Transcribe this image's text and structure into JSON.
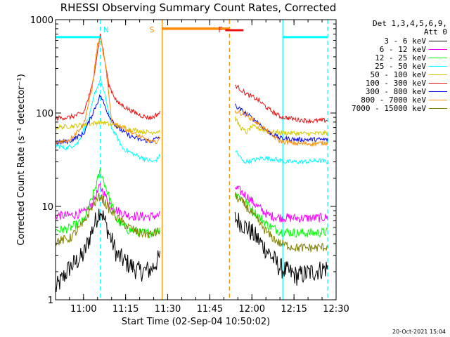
{
  "title": "RHESSI Observing Summary Count Rates, Corrected",
  "footer": "20-Oct-2021 15:04",
  "legend": {
    "header": [
      "Det 1,3,4,5,6,9,",
      "Att 0"
    ],
    "entries": [
      {
        "label": "3 - 6 keV",
        "color": "#000000"
      },
      {
        "label": "6 - 12 keV",
        "color": "#ff00ff"
      },
      {
        "label": "12 - 25 keV",
        "color": "#00ff00"
      },
      {
        "label": "25 - 50 keV",
        "color": "#00ffff"
      },
      {
        "label": "50 - 100 keV",
        "color": "#d4c800"
      },
      {
        "label": "100 - 300 keV",
        "color": "#ee1111"
      },
      {
        "label": "300 - 800 keV",
        "color": "#0000ff"
      },
      {
        "label": "800 - 7000 keV",
        "color": "#ff8c00"
      },
      {
        "label": "7000 - 15000 keV",
        "color": "#808000"
      }
    ]
  },
  "chart_data": {
    "type": "line",
    "title": "RHESSI Observing Summary Count Rates, Corrected",
    "xlabel": "Start Time (02-Sep-04 10:50:02)",
    "ylabel": "Corrected Count Rate (s⁻¹ detector⁻¹)",
    "y_scale": "log",
    "xlim": [
      "10:50:02",
      "12:30:00"
    ],
    "ylim": [
      1,
      1000
    ],
    "x_ticks": [
      "11:00",
      "11:15",
      "11:30",
      "11:45",
      "12:00",
      "12:15",
      "12:30"
    ],
    "y_ticks": [
      "1",
      "10",
      "100",
      "1000"
    ],
    "flags": [
      {
        "label": "N",
        "color": "#00ffff",
        "start": "11:06",
        "end": "11:06"
      },
      {
        "label": "S",
        "color": "#ff8c00",
        "start": "11:27",
        "end": "11:50"
      },
      {
        "label": "F",
        "color": "#ee1111",
        "start": "11:53",
        "end": "11:57"
      }
    ],
    "night_bars": [
      {
        "start": "10:50",
        "end": "11:06",
        "level": 650,
        "color": "#00ffff"
      },
      {
        "start": "12:11",
        "end": "12:27",
        "level": 650,
        "color": "#00ffff"
      }
    ],
    "saa_bar": {
      "start": "11:28",
      "end": "11:52",
      "level": 800,
      "color": "#ff8c00"
    },
    "vertical_lines": [
      {
        "time": "11:06",
        "color": "#00ffff",
        "style": "dashed"
      },
      {
        "time": "11:28",
        "color": "#ff8c00",
        "style": "solid"
      },
      {
        "time": "11:52",
        "color": "#ff8c00",
        "style": "dashed"
      },
      {
        "time": "12:11",
        "color": "#00ffff",
        "style": "solid"
      },
      {
        "time": "12:27",
        "color": "#00ffff",
        "style": "dashed"
      }
    ],
    "gap": [
      "11:28",
      "11:54"
    ],
    "series": [
      {
        "name": "3 - 6 keV",
        "color": "#000000",
        "x": [
          "10:50",
          "10:55",
          "11:00",
          "11:03",
          "11:06",
          "11:09",
          "11:12",
          "11:16",
          "11:20",
          "11:24",
          "11:27",
          "11:54",
          "11:58",
          "12:02",
          "12:06",
          "12:10",
          "12:16",
          "12:22",
          "12:27"
        ],
        "y": [
          1.3,
          2.2,
          3.0,
          5.5,
          9.5,
          5.2,
          3.0,
          2.4,
          2.0,
          2.1,
          2.8,
          7.5,
          6.0,
          4.5,
          3.2,
          2.2,
          1.8,
          2.0,
          2.2
        ]
      },
      {
        "name": "6 - 12 keV",
        "color": "#ff00ff",
        "x": [
          "10:50",
          "10:55",
          "11:00",
          "11:03",
          "11:06",
          "11:09",
          "11:12",
          "11:16",
          "11:20",
          "11:24",
          "11:27",
          "11:54",
          "11:58",
          "12:02",
          "12:06",
          "12:10",
          "12:16",
          "12:22",
          "12:27"
        ],
        "y": [
          8.0,
          8.0,
          8.5,
          10.5,
          16.5,
          11.0,
          9.0,
          8.0,
          7.8,
          7.8,
          8.0,
          16.0,
          13.0,
          10.0,
          8.0,
          7.6,
          7.5,
          7.5,
          7.6
        ]
      },
      {
        "name": "12 - 25 keV",
        "color": "#00ff00",
        "x": [
          "10:50",
          "10:55",
          "11:00",
          "11:03",
          "11:06",
          "11:09",
          "11:12",
          "11:16",
          "11:20",
          "11:24",
          "11:27",
          "11:54",
          "11:58",
          "12:02",
          "12:06",
          "12:10",
          "12:16",
          "12:22",
          "12:27"
        ],
        "y": [
          5.5,
          5.8,
          7.0,
          12.0,
          24.0,
          13.0,
          7.0,
          5.6,
          5.2,
          5.2,
          5.6,
          14.0,
          11.0,
          8.0,
          6.2,
          5.4,
          5.2,
          5.2,
          5.3
        ]
      },
      {
        "name": "25 - 50 keV",
        "color": "#00ffff",
        "x": [
          "10:50",
          "10:54",
          "10:58",
          "11:02",
          "11:04",
          "11:06",
          "11:08",
          "11:10",
          "11:14",
          "11:18",
          "11:22",
          "11:25",
          "11:27",
          "11:54",
          "11:57",
          "12:00",
          "12:04",
          "12:08",
          "12:12",
          "12:18",
          "12:24",
          "12:27"
        ],
        "y": [
          45,
          42,
          48,
          90,
          160,
          230,
          140,
          70,
          42,
          36,
          32,
          30,
          34,
          40,
          30,
          31,
          33,
          32,
          30,
          30,
          31,
          30
        ]
      },
      {
        "name": "50 - 100 keV",
        "color": "#d4c800",
        "x": [
          "10:50",
          "10:55",
          "11:00",
          "11:04",
          "11:06",
          "11:08",
          "11:12",
          "11:16",
          "11:20",
          "11:24",
          "11:27",
          "11:54",
          "11:56",
          "11:58",
          "12:00",
          "12:04",
          "12:08",
          "12:14",
          "12:20",
          "12:27"
        ],
        "y": [
          70,
          72,
          75,
          78,
          80,
          78,
          72,
          68,
          64,
          62,
          64,
          88,
          70,
          62,
          72,
          66,
          62,
          61,
          60,
          61
        ]
      },
      {
        "name": "100 - 300 keV",
        "color": "#ee1111",
        "x": [
          "10:50",
          "10:55",
          "11:00",
          "11:03",
          "11:06",
          "11:09",
          "11:12",
          "11:16",
          "11:20",
          "11:24",
          "11:27",
          "11:54",
          "11:58",
          "12:02",
          "12:06",
          "12:10",
          "12:16",
          "12:22",
          "12:27"
        ],
        "y": [
          88,
          90,
          100,
          190,
          700,
          200,
          130,
          110,
          95,
          88,
          100,
          200,
          160,
          140,
          110,
          92,
          85,
          82,
          84
        ]
      },
      {
        "name": "300 - 800 keV",
        "color": "#0000ff",
        "x": [
          "10:50",
          "10:55",
          "11:00",
          "11:03",
          "11:06",
          "11:09",
          "11:12",
          "11:16",
          "11:20",
          "11:24",
          "11:27",
          "11:54",
          "11:58",
          "12:02",
          "12:06",
          "12:10",
          "12:16",
          "12:22",
          "12:27"
        ],
        "y": [
          48,
          50,
          60,
          95,
          155,
          95,
          70,
          58,
          52,
          50,
          55,
          120,
          98,
          80,
          62,
          54,
          52,
          52,
          52
        ]
      },
      {
        "name": "800 - 7000 keV",
        "color": "#ff8c00",
        "x": [
          "10:50",
          "10:55",
          "11:00",
          "11:03",
          "11:05",
          "11:06",
          "11:08",
          "11:10",
          "11:14",
          "11:18",
          "11:22",
          "11:25",
          "11:27",
          "11:54",
          "11:58",
          "12:02",
          "12:06",
          "12:10",
          "12:16",
          "12:22",
          "12:27"
        ],
        "y": [
          48,
          52,
          75,
          180,
          540,
          650,
          300,
          80,
          70,
          60,
          52,
          48,
          52,
          105,
          95,
          78,
          62,
          50,
          47,
          47,
          48
        ]
      },
      {
        "name": "7000 - 15000 keV",
        "color": "#808000",
        "x": [
          "10:50",
          "10:55",
          "11:00",
          "11:03",
          "11:06",
          "11:09",
          "11:12",
          "11:16",
          "11:20",
          "11:24",
          "11:27",
          "11:54",
          "11:58",
          "12:02",
          "12:06",
          "12:10",
          "12:16",
          "12:22",
          "12:27"
        ],
        "y": [
          4.2,
          4.5,
          6.5,
          10.0,
          13.0,
          9.5,
          7.5,
          6.0,
          5.2,
          5.0,
          5.4,
          13.0,
          10.0,
          7.0,
          5.0,
          4.0,
          3.6,
          3.6,
          3.7
        ]
      }
    ]
  }
}
